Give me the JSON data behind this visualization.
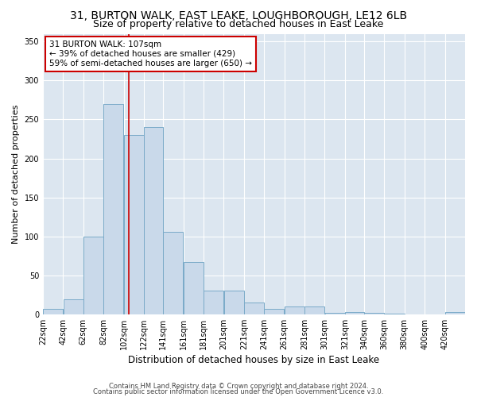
{
  "title1": "31, BURTON WALK, EAST LEAKE, LOUGHBOROUGH, LE12 6LB",
  "title2": "Size of property relative to detached houses in East Leake",
  "xlabel": "Distribution of detached houses by size in East Leake",
  "ylabel": "Number of detached properties",
  "footnote1": "Contains HM Land Registry data © Crown copyright and database right 2024.",
  "footnote2": "Contains public sector information licensed under the Open Government Licence v3.0.",
  "bar_color": "#c9d9ea",
  "bar_edge_color": "#7aaac8",
  "background_color": "#dce6f0",
  "grid_color": "#ffffff",
  "fig_background": "#ffffff",
  "annotation_box_text": "31 BURTON WALK: 107sqm\n← 39% of detached houses are smaller (429)\n59% of semi-detached houses are larger (650) →",
  "annotation_box_color": "#ffffff",
  "annotation_box_edge_color": "#cc0000",
  "vline_x": 107,
  "vline_color": "#cc0000",
  "categories": [
    "22sqm",
    "42sqm",
    "62sqm",
    "82sqm",
    "102sqm",
    "122sqm",
    "141sqm",
    "161sqm",
    "181sqm",
    "201sqm",
    "221sqm",
    "241sqm",
    "261sqm",
    "281sqm",
    "301sqm",
    "321sqm",
    "340sqm",
    "360sqm",
    "380sqm",
    "400sqm",
    "420sqm"
  ],
  "bin_edges": [
    22,
    42,
    62,
    82,
    102,
    122,
    141,
    161,
    181,
    201,
    221,
    241,
    261,
    281,
    301,
    321,
    340,
    360,
    380,
    400,
    420,
    440
  ],
  "values": [
    7,
    19,
    100,
    270,
    230,
    240,
    106,
    67,
    30,
    30,
    15,
    7,
    10,
    10,
    2,
    3,
    2,
    1,
    0,
    0,
    3
  ],
  "ylim": [
    0,
    360
  ],
  "yticks": [
    0,
    50,
    100,
    150,
    200,
    250,
    300,
    350
  ],
  "title_fontsize": 10,
  "subtitle_fontsize": 9,
  "axis_label_fontsize": 8.5,
  "tick_fontsize": 7,
  "annot_fontsize": 7.5,
  "ylabel_fontsize": 8
}
